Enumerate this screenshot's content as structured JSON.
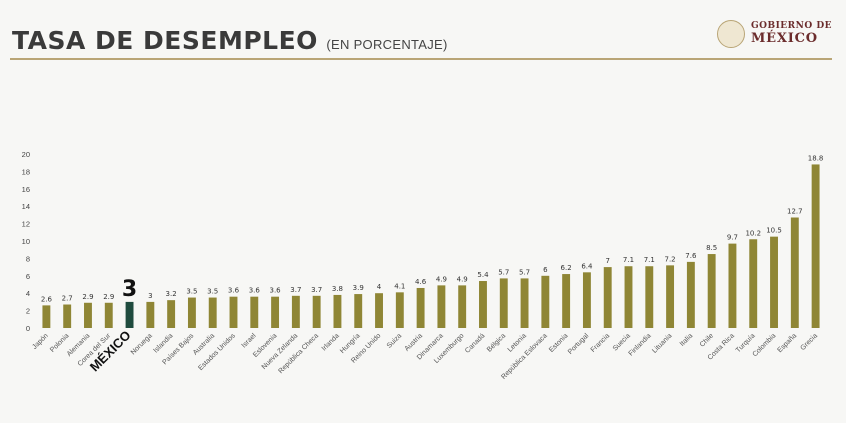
{
  "header": {
    "title": "TASA DE DESEMPLEO",
    "subtitle": "(EN PORCENTAJE)",
    "logo_line1": "GOBIERNO DE",
    "logo_line2": "MÉXICO"
  },
  "colors": {
    "bar": "#8f8635",
    "bar_highlight": "#1f4b3e",
    "title": "#3a3a3a",
    "accent_rule": "#b9a576",
    "logo": "#6b2c2c"
  },
  "chart_data": {
    "type": "bar",
    "title": "TASA DE DESEMPLEO",
    "subtitle": "(EN PORCENTAJE)",
    "categories": [
      "Japón",
      "Polonia",
      "Alemania",
      "Corea del Sur",
      "MÉXICO",
      "Noruega",
      "Islandia",
      "Países Bajos",
      "Australia",
      "Estados Unidos",
      "Israel",
      "Eslovenia",
      "Nueva Zelanda",
      "República Checa",
      "Irlanda",
      "Hungría",
      "Reino Unido",
      "Suiza",
      "Austria",
      "Dinamarca",
      "Luxemburgo",
      "Canadá",
      "Bélgica",
      "Letonia",
      "República Eslovaca",
      "Estonia",
      "Portugal",
      "Francia",
      "Suecia",
      "Finlandia",
      "Lituania",
      "Italia",
      "Chile",
      "Costa Rica",
      "Turquía",
      "Colombia",
      "España",
      "Grecia"
    ],
    "value_labels": [
      "2.6",
      "2.7",
      "2.9",
      "2.9",
      "3",
      "3",
      "3.2",
      "3.5",
      "3.5",
      "3.6",
      "3.6",
      "3.6",
      "3.7",
      "3.7",
      "3.8",
      "3.9",
      "4",
      "4.1",
      "4.6",
      "4.9",
      "4.9",
      "5.4",
      "5.7",
      "5.7",
      "6",
      "6.2",
      "6.4",
      "7",
      "7.1",
      "7.1",
      "7.2",
      "7.6",
      "8.5",
      "9.7",
      "10.2",
      "10.5",
      "12.7",
      "18.8"
    ],
    "values": [
      2.6,
      2.7,
      2.9,
      2.9,
      3,
      3,
      3.2,
      3.5,
      3.5,
      3.6,
      3.6,
      3.6,
      3.7,
      3.7,
      3.8,
      3.9,
      4,
      4.1,
      4.6,
      4.9,
      4.9,
      5.4,
      5.7,
      5.7,
      6,
      6.2,
      6.4,
      7,
      7.1,
      7.1,
      7.2,
      7.6,
      8.5,
      9.7,
      10.2,
      10.5,
      12.7,
      18.8
    ],
    "highlight_category": "MÉXICO",
    "yticks": [
      "0",
      "2",
      "4",
      "6",
      "8",
      "10",
      "12",
      "14",
      "16",
      "18",
      "20"
    ],
    "ylim": [
      0,
      20
    ],
    "grid": false,
    "legend": "none"
  }
}
